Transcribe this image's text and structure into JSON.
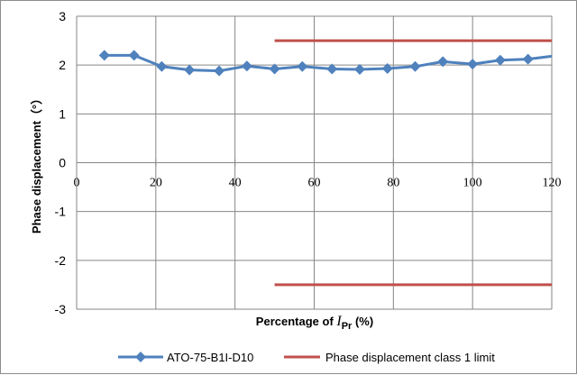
{
  "chart_data": {
    "type": "line",
    "xlabel_prefix": "Percentage of ",
    "xlabel_symbol": "I",
    "xlabel_subscript": "Pr",
    "xlabel_suffix": " (%)",
    "ylabel": "Phase displacement（°）",
    "xlim": [
      0,
      120
    ],
    "ylim": [
      -3,
      3
    ],
    "x_ticks": [
      0,
      20,
      40,
      60,
      80,
      100,
      120
    ],
    "y_ticks": [
      3,
      2,
      1,
      0,
      -1,
      -2,
      -3
    ],
    "grid": true,
    "legend_position": "bottom",
    "series": [
      {
        "name": "ATO-75-B1I-D10",
        "color": "#4f81bd",
        "marker": "diamond",
        "x": [
          7,
          14.5,
          21.5,
          28.5,
          36,
          43,
          50,
          57,
          64.5,
          71.5,
          78.5,
          85.5,
          92.5,
          100,
          107,
          114,
          120
        ],
        "y": [
          2.2,
          2.2,
          1.97,
          1.9,
          1.88,
          1.98,
          1.92,
          1.97,
          1.92,
          1.91,
          1.93,
          1.97,
          2.07,
          2.02,
          2.1,
          2.12,
          2.18
        ],
        "marker_count": 16
      },
      {
        "name": "Phase displacement class 1 limit",
        "color": "#c0504d",
        "segments": [
          {
            "x": [
              50,
              120
            ],
            "y": [
              2.5,
              2.5
            ]
          },
          {
            "x": [
              50,
              120
            ],
            "y": [
              -2.5,
              -2.5
            ]
          }
        ]
      }
    ]
  }
}
